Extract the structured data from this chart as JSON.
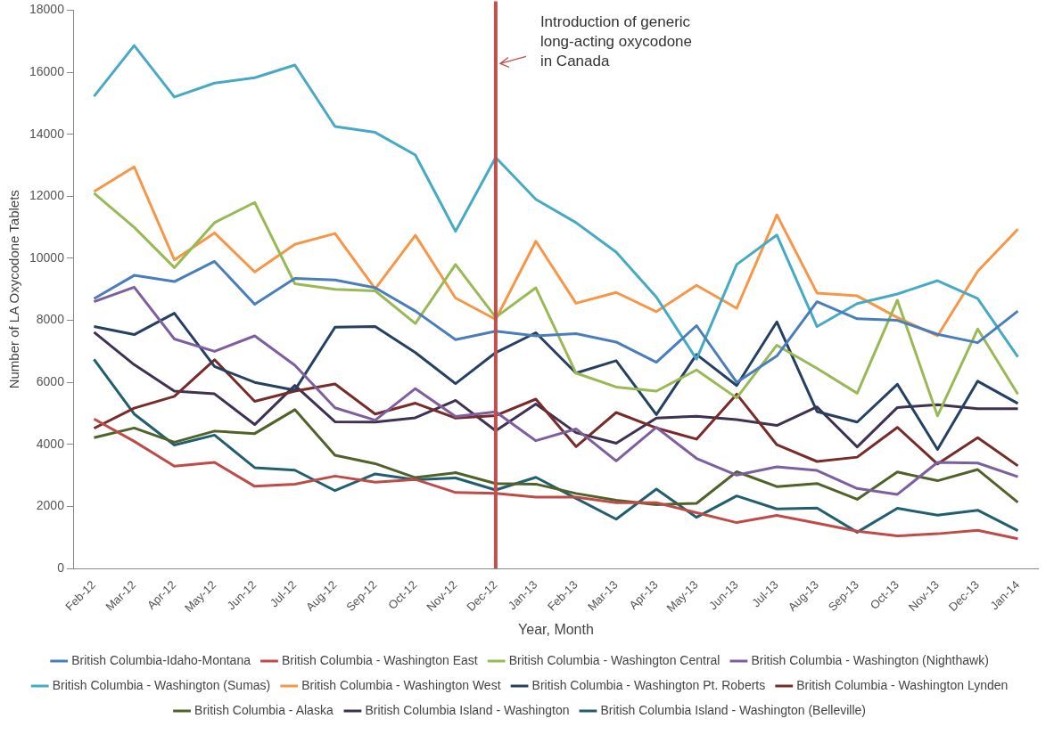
{
  "chart_data": {
    "type": "line",
    "xlabel": "Year, Month",
    "ylabel": "Number of LA Oxycodone Tablets",
    "categories": [
      "Feb-12",
      "Mar-12",
      "Apr-12",
      "May-12",
      "Jun-12",
      "Jul-12",
      "Aug-12",
      "Sep-12",
      "Oct-12",
      "Nov-12",
      "Dec-12",
      "Jan-13",
      "Feb-13",
      "Mar-13",
      "Apr-13",
      "May-13",
      "Jun-13",
      "Jul-13",
      "Aug-13",
      "Sep-13",
      "Oct-13",
      "Nov-13",
      "Dec-13",
      "Jan-14"
    ],
    "ylim": [
      0,
      18000
    ],
    "yticks": [
      0,
      2000,
      4000,
      6000,
      8000,
      10000,
      12000,
      14000,
      16000,
      18000
    ],
    "grid": false,
    "legend": "bottom",
    "marker": "none",
    "line_style": "solid",
    "ref_lines": [
      {
        "axis": "x",
        "value": "Dec-12",
        "label": "Introduction of generic long-acting oxycodone in Canada",
        "color": "#c0504d"
      }
    ],
    "series": [
      {
        "name": "British Columbia-Idaho-Montana",
        "color": "#4a7ebb",
        "values": [
          8700,
          9450,
          9250,
          9900,
          8520,
          9350,
          9300,
          9050,
          8300,
          7380,
          7650,
          7500,
          7570,
          7300,
          6650,
          7830,
          6000,
          6850,
          8600,
          8050,
          8000,
          7550,
          7280,
          8300
        ]
      },
      {
        "name": "British Columbia - Washington East",
        "color": "#be4b48",
        "values": [
          4820,
          4100,
          3300,
          3420,
          2650,
          2720,
          2980,
          2780,
          2870,
          2450,
          2420,
          2300,
          2300,
          2120,
          2120,
          1800,
          1480,
          1710,
          1460,
          1200,
          1050,
          1120,
          1230,
          960
        ]
      },
      {
        "name": "British Columbia - Washington Central",
        "color": "#98b954",
        "values": [
          12100,
          11000,
          9700,
          11150,
          11800,
          9180,
          9000,
          8950,
          7900,
          9800,
          8100,
          9050,
          6300,
          5850,
          5720,
          6400,
          5500,
          7200,
          6450,
          5650,
          8650,
          4920,
          7720,
          5620
        ]
      },
      {
        "name": "British Columbia - Washington (Nighthawk)",
        "color": "#7d5fa0",
        "values": [
          8600,
          9070,
          7400,
          7000,
          7500,
          6550,
          5180,
          4780,
          5800,
          4900,
          5050,
          4120,
          4500,
          3470,
          4550,
          3550,
          3010,
          3280,
          3160,
          2580,
          2390,
          3420,
          3400,
          2960
        ]
      },
      {
        "name": "British Columbia - Washington (Sumas)",
        "color": "#46aac5",
        "values": [
          15220,
          16860,
          15200,
          15650,
          15820,
          16230,
          14250,
          14060,
          13330,
          10870,
          13250,
          11900,
          11150,
          10200,
          8750,
          6750,
          9800,
          10750,
          7800,
          8540,
          8850,
          9280,
          8700,
          6820
        ]
      },
      {
        "name": "British Columbia - Washington West",
        "color": "#f79646",
        "values": [
          12150,
          12950,
          9950,
          10820,
          9560,
          10450,
          10800,
          9020,
          10740,
          8720,
          8030,
          10550,
          8550,
          8900,
          8280,
          9130,
          8390,
          11400,
          8880,
          8790,
          8090,
          7500,
          9580,
          10940
        ]
      },
      {
        "name": "British Columbia - Washington Pt. Roberts",
        "color": "#254061",
        "values": [
          7800,
          7540,
          8230,
          6510,
          6000,
          5750,
          7780,
          7800,
          6960,
          5960,
          6960,
          7600,
          6300,
          6700,
          4960,
          6900,
          5900,
          7950,
          5060,
          4720,
          5940,
          3840,
          6040,
          5320
        ]
      },
      {
        "name": "British Columbia - Washington Lynden",
        "color": "#772c2a",
        "values": [
          4520,
          5170,
          5550,
          6730,
          5390,
          5720,
          5950,
          4980,
          5330,
          4850,
          4930,
          5460,
          3930,
          5030,
          4530,
          4170,
          5620,
          3990,
          3450,
          3590,
          4550,
          3370,
          4220,
          3310
        ]
      },
      {
        "name": "British Columbia - Alaska",
        "color": "#4f6228",
        "values": [
          4220,
          4530,
          4070,
          4430,
          4350,
          5120,
          3650,
          3380,
          2930,
          3090,
          2740,
          2720,
          2420,
          2200,
          2060,
          2100,
          3120,
          2640,
          2740,
          2230,
          3110,
          2830,
          3190,
          2130
        ]
      },
      {
        "name": "British Columbia Island - Washington",
        "color": "#3f3151",
        "values": [
          7620,
          6570,
          5720,
          5630,
          4640,
          5900,
          4730,
          4720,
          4860,
          5420,
          4440,
          5300,
          4380,
          4040,
          4850,
          4910,
          4800,
          4610,
          5210,
          3920,
          5190,
          5280,
          5150,
          5150
        ]
      },
      {
        "name": "British Columbia Island - Washington (Belleville)",
        "color": "#215f6e",
        "values": [
          6740,
          4980,
          3980,
          4300,
          3250,
          3170,
          2510,
          3050,
          2860,
          2920,
          2530,
          2940,
          2260,
          1590,
          2560,
          1650,
          2340,
          1920,
          1950,
          1170,
          1940,
          1720,
          1880,
          1220
        ]
      }
    ]
  }
}
